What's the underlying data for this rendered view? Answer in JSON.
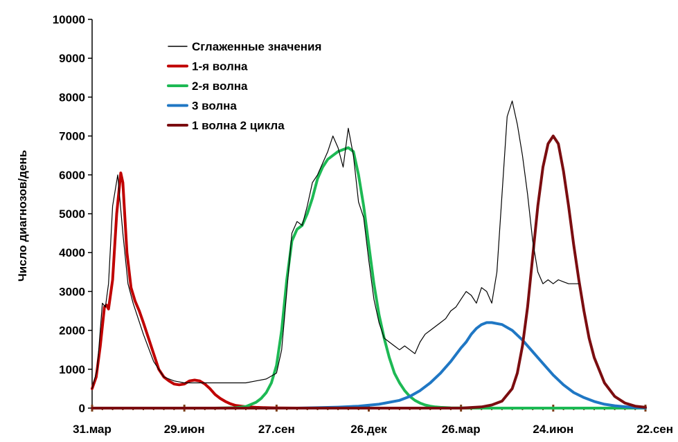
{
  "chart_data": {
    "type": "line",
    "title": "",
    "xlabel": "",
    "ylabel": "Число диагнозов/день",
    "ylim": [
      0,
      10000
    ],
    "yticks": [
      0,
      1000,
      2000,
      3000,
      4000,
      5000,
      6000,
      7000,
      8000,
      9000,
      10000
    ],
    "xlim": [
      0,
      540
    ],
    "xtick_labels": [
      {
        "day": 0,
        "label": "31.мар"
      },
      {
        "day": 90,
        "label": "29.июн"
      },
      {
        "day": 180,
        "label": "27.сен"
      },
      {
        "day": 270,
        "label": "26.дек"
      },
      {
        "day": 360,
        "label": "26.мар"
      },
      {
        "day": 450,
        "label": "24.июн"
      },
      {
        "day": 540,
        "label": "22.сен"
      }
    ],
    "grid": false,
    "legend_position": "top-left",
    "series": [
      {
        "name": "Сглаженные значения",
        "color": "#000000",
        "x": [
          0,
          5,
          10,
          13,
          16,
          20,
          25,
          30,
          35,
          40,
          45,
          50,
          60,
          70,
          80,
          90,
          100,
          110,
          120,
          130,
          140,
          150,
          160,
          170,
          180,
          185,
          190,
          195,
          200,
          205,
          210,
          215,
          220,
          225,
          230,
          235,
          240,
          245,
          250,
          255,
          260,
          265,
          270,
          275,
          280,
          285,
          290,
          295,
          300,
          305,
          310,
          315,
          320,
          325,
          330,
          335,
          340,
          345,
          350,
          355,
          360,
          365,
          370,
          375,
          380,
          385,
          390,
          395,
          400,
          405,
          410,
          415,
          420,
          425,
          430,
          435,
          440,
          445,
          450,
          455,
          460,
          465,
          470,
          475
        ],
        "values": [
          500,
          1000,
          2700,
          2600,
          3200,
          5200,
          6000,
          4500,
          3200,
          2700,
          2300,
          1900,
          1200,
          800,
          700,
          650,
          650,
          650,
          650,
          650,
          650,
          650,
          700,
          750,
          900,
          1500,
          3000,
          4500,
          4800,
          4700,
          5200,
          5800,
          6000,
          6300,
          6600,
          7000,
          6700,
          6200,
          7200,
          6500,
          5300,
          4900,
          3800,
          2800,
          2200,
          1800,
          1700,
          1600,
          1500,
          1600,
          1500,
          1400,
          1700,
          1900,
          2000,
          2100,
          2200,
          2300,
          2500,
          2600,
          2800,
          3000,
          2900,
          2700,
          3100,
          3000,
          2700,
          3500,
          5500,
          7500,
          7900,
          7300,
          6500,
          5500,
          4300,
          3500,
          3200,
          3300,
          3200,
          3300,
          3250,
          3200,
          3200,
          3200
        ]
      },
      {
        "name": "1-я волна",
        "color": "#c00000",
        "x": [
          0,
          4,
          8,
          12,
          14,
          16,
          20,
          24,
          28,
          30,
          34,
          38,
          42,
          46,
          50,
          55,
          60,
          65,
          70,
          75,
          80,
          85,
          90,
          95,
          100,
          105,
          110,
          115,
          120,
          125,
          130,
          135,
          140,
          150,
          160,
          170,
          180,
          200,
          240,
          300,
          360,
          420,
          480,
          540
        ],
        "values": [
          500,
          800,
          1600,
          2600,
          2650,
          2550,
          3300,
          5000,
          6050,
          5800,
          4000,
          3100,
          2750,
          2500,
          2200,
          1800,
          1400,
          1000,
          800,
          700,
          620,
          600,
          620,
          700,
          720,
          700,
          620,
          500,
          350,
          250,
          170,
          110,
          70,
          35,
          20,
          10,
          5,
          0,
          0,
          0,
          0,
          0,
          0,
          0
        ]
      },
      {
        "name": "2-я волна",
        "color": "#1db954",
        "x": [
          0,
          40,
          80,
          120,
          140,
          150,
          160,
          165,
          170,
          175,
          180,
          185,
          190,
          195,
          200,
          205,
          210,
          215,
          220,
          225,
          230,
          235,
          240,
          245,
          250,
          255,
          260,
          265,
          270,
          275,
          280,
          285,
          290,
          295,
          300,
          305,
          310,
          315,
          320,
          325,
          330,
          335,
          340,
          350,
          360,
          380,
          420,
          480,
          540
        ],
        "values": [
          0,
          0,
          0,
          0,
          10,
          40,
          150,
          250,
          400,
          650,
          1100,
          2000,
          3300,
          4300,
          4600,
          4700,
          5000,
          5400,
          5900,
          6200,
          6400,
          6500,
          6600,
          6650,
          6700,
          6600,
          6000,
          5200,
          4200,
          3200,
          2400,
          1800,
          1300,
          900,
          650,
          450,
          300,
          200,
          130,
          80,
          50,
          30,
          20,
          8,
          3,
          0,
          0,
          0,
          0
        ]
      },
      {
        "name": "3 волна",
        "color": "#1f77c4",
        "x": [
          0,
          100,
          200,
          220,
          240,
          260,
          280,
          300,
          310,
          320,
          330,
          340,
          350,
          360,
          365,
          370,
          375,
          380,
          385,
          390,
          400,
          410,
          420,
          430,
          440,
          450,
          460,
          470,
          480,
          490,
          500,
          510,
          520,
          530,
          540
        ],
        "values": [
          0,
          0,
          0,
          10,
          25,
          50,
          100,
          200,
          300,
          450,
          650,
          900,
          1200,
          1550,
          1700,
          1900,
          2050,
          2150,
          2200,
          2200,
          2150,
          2000,
          1750,
          1450,
          1150,
          850,
          600,
          400,
          270,
          170,
          100,
          60,
          35,
          15,
          5
        ]
      },
      {
        "name": "1 волна 2 цикла",
        "color": "#7b0d10",
        "x": [
          0,
          300,
          360,
          380,
          390,
          400,
          410,
          415,
          420,
          425,
          430,
          435,
          440,
          445,
          450,
          455,
          460,
          465,
          470,
          475,
          480,
          485,
          490,
          500,
          510,
          520,
          530,
          540
        ],
        "values": [
          0,
          0,
          0,
          30,
          80,
          180,
          500,
          900,
          1600,
          2600,
          3900,
          5200,
          6200,
          6800,
          7000,
          6800,
          6100,
          5200,
          4200,
          3300,
          2500,
          1800,
          1300,
          650,
          300,
          130,
          50,
          20
        ]
      }
    ]
  }
}
